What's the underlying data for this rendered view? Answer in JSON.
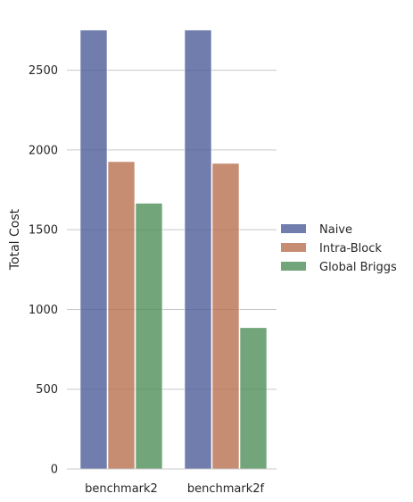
{
  "chart_data": {
    "type": "bar",
    "categories": [
      "benchmark2",
      "benchmark2f"
    ],
    "series": [
      {
        "name": "Naive",
        "values": [
          2752,
          2752
        ],
        "color": "#4c5d98"
      },
      {
        "name": "Intra-Block",
        "values": [
          1927,
          1916
        ],
        "color": "#b8704f"
      },
      {
        "name": "Global Briggs",
        "values": [
          1666,
          886
        ],
        "color": "#4f8f57"
      }
    ],
    "title": "",
    "xlabel": "",
    "ylabel": "Total Cost",
    "ylim": [
      0,
      2750
    ],
    "yticks": [
      0,
      500,
      1000,
      1500,
      2000,
      2500
    ],
    "grid": true,
    "legend_position": "right"
  }
}
